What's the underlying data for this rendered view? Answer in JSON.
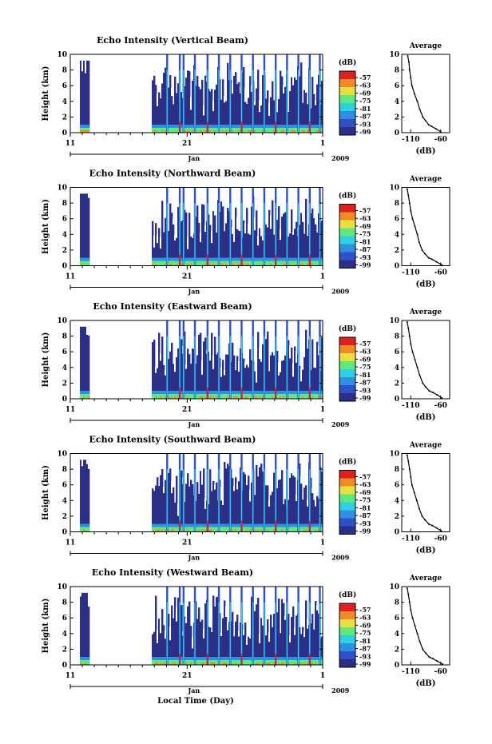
{
  "chart_data": [
    {
      "type": "heatmap",
      "title": "Echo Intensity (Vertical Beam)",
      "ylabel": "Height (km)",
      "ylim": [
        0,
        10
      ],
      "yticks": [
        "0",
        "2",
        "4",
        "6",
        "8",
        "10"
      ],
      "xticks": [
        "11",
        "21",
        "1"
      ],
      "month_label": "Jan",
      "year_label": "2009",
      "colorbar": {
        "unit": "(dB)",
        "ticks": [
          "-57",
          "-63",
          "-69",
          "-75",
          "-81",
          "-87",
          "-93",
          "-99"
        ]
      },
      "profile": {
        "title": "Average",
        "xlabel": "(dB)",
        "xlim": [
          -125,
          -45
        ],
        "xticks": [
          "-110",
          "-60"
        ],
        "ylim": [
          0,
          10
        ],
        "yticks": [
          "0",
          "2",
          "4",
          "6",
          "8",
          "10"
        ],
        "x": [
          -115,
          -113,
          -112,
          -110,
          -108,
          -104,
          -99,
          -95,
          -90,
          -85,
          -80,
          -75,
          -68,
          -60
        ],
        "y": [
          9.8,
          9.0,
          8.0,
          7.0,
          6.0,
          5.0,
          4.0,
          3.0,
          2.0,
          1.5,
          1.0,
          0.8,
          0.5,
          0.1
        ]
      }
    },
    {
      "type": "heatmap",
      "title": "Echo Intensity (Northward Beam)",
      "ylabel": "Height (km)",
      "ylim": [
        0,
        10
      ],
      "yticks": [
        "0",
        "2",
        "4",
        "6",
        "8",
        "10"
      ],
      "xticks": [
        "11",
        "21",
        "1"
      ],
      "month_label": "Jan",
      "year_label": "2009",
      "colorbar": {
        "unit": "(dB)",
        "ticks": [
          "-57",
          "-63",
          "-69",
          "-75",
          "-81",
          "-87",
          "-93",
          "-99"
        ]
      },
      "profile": {
        "title": "Average",
        "xlabel": "(dB)",
        "xlim": [
          -125,
          -45
        ],
        "xticks": [
          "-110",
          "-60"
        ],
        "ylim": [
          0,
          10
        ],
        "yticks": [
          "0",
          "2",
          "4",
          "6",
          "8",
          "10"
        ],
        "x": [
          -116,
          -114,
          -112,
          -110,
          -107,
          -103,
          -99,
          -96,
          -91,
          -86,
          -80,
          -74,
          -67,
          -58
        ],
        "y": [
          9.8,
          9.0,
          8.0,
          7.0,
          6.0,
          5.0,
          4.0,
          3.0,
          2.0,
          1.5,
          1.0,
          0.8,
          0.5,
          0.1
        ]
      }
    },
    {
      "type": "heatmap",
      "title": "Echo Intensity (Eastward Beam)",
      "ylabel": "Height (km)",
      "ylim": [
        0,
        10
      ],
      "yticks": [
        "0",
        "2",
        "4",
        "6",
        "8",
        "10"
      ],
      "xticks": [
        "11",
        "21",
        "1"
      ],
      "month_label": "Jan",
      "year_label": "2009",
      "colorbar": {
        "unit": "(dB)",
        "ticks": [
          "-57",
          "-63",
          "-69",
          "-75",
          "-81",
          "-87",
          "-93",
          "-99"
        ]
      },
      "profile": {
        "title": "Average",
        "xlabel": "(dB)",
        "xlim": [
          -125,
          -45
        ],
        "xticks": [
          "-110",
          "-60"
        ],
        "ylim": [
          0,
          10
        ],
        "yticks": [
          "0",
          "2",
          "4",
          "6",
          "8",
          "10"
        ],
        "x": [
          -116,
          -114,
          -112,
          -110,
          -107,
          -103,
          -99,
          -95,
          -90,
          -85,
          -79,
          -73,
          -66,
          -58
        ],
        "y": [
          9.8,
          9.0,
          8.0,
          7.0,
          6.0,
          5.0,
          4.0,
          3.0,
          2.0,
          1.5,
          1.0,
          0.8,
          0.5,
          0.1
        ]
      }
    },
    {
      "type": "heatmap",
      "title": "Echo Intensity (Southward Beam)",
      "ylabel": "Height (km)",
      "ylim": [
        0,
        10
      ],
      "yticks": [
        "0",
        "2",
        "4",
        "6",
        "8",
        "10"
      ],
      "xticks": [
        "11",
        "21",
        "1"
      ],
      "month_label": "Jan",
      "year_label": "2009",
      "colorbar": {
        "unit": "(dB)",
        "ticks": [
          "-57",
          "-63",
          "-69",
          "-75",
          "-81",
          "-87",
          "-93",
          "-99"
        ]
      },
      "profile": {
        "title": "Average",
        "xlabel": "(dB)",
        "xlim": [
          -125,
          -45
        ],
        "xticks": [
          "-110",
          "-60"
        ],
        "ylim": [
          0,
          10
        ],
        "yticks": [
          "0",
          "2",
          "4",
          "6",
          "8",
          "10"
        ],
        "x": [
          -116,
          -114,
          -112,
          -110,
          -108,
          -104,
          -100,
          -96,
          -91,
          -86,
          -80,
          -74,
          -67,
          -59
        ],
        "y": [
          9.8,
          9.0,
          8.0,
          7.0,
          6.0,
          5.0,
          4.0,
          3.0,
          2.0,
          1.5,
          1.0,
          0.8,
          0.5,
          0.1
        ]
      }
    },
    {
      "type": "heatmap",
      "title": "Echo Intensity (Westward Beam)",
      "ylabel": "Height (km)",
      "ylim": [
        0,
        10
      ],
      "yticks": [
        "0",
        "2",
        "4",
        "6",
        "8",
        "10"
      ],
      "xticks": [
        "11",
        "21",
        "1"
      ],
      "month_label": "Jan",
      "year_label": "2009",
      "colorbar": {
        "unit": "(dB)",
        "ticks": [
          "-57",
          "-63",
          "-69",
          "-75",
          "-81",
          "-87",
          "-93",
          "-99"
        ]
      },
      "profile": {
        "title": "Average",
        "xlabel": "(dB)",
        "xlim": [
          -125,
          -45
        ],
        "xticks": [
          "-110",
          "-60"
        ],
        "ylim": [
          0,
          10
        ],
        "yticks": [
          "0",
          "2",
          "4",
          "6",
          "8",
          "10"
        ],
        "x": [
          -116,
          -114,
          -112,
          -110,
          -107,
          -103,
          -99,
          -95,
          -90,
          -85,
          -79,
          -73,
          -66,
          -57
        ],
        "y": [
          9.8,
          9.0,
          8.0,
          7.0,
          6.0,
          5.0,
          4.0,
          3.0,
          2.0,
          1.5,
          1.0,
          0.8,
          0.5,
          0.1
        ]
      }
    }
  ],
  "figure": {
    "xlabel": "Local Time (Day)"
  },
  "colors": {
    "colormap": [
      "#2b2f86",
      "#3050c8",
      "#2f8fe0",
      "#2fd0e0",
      "#60e880",
      "#e8e040",
      "#f08c28",
      "#e02020"
    ],
    "background": "#ffffff"
  }
}
